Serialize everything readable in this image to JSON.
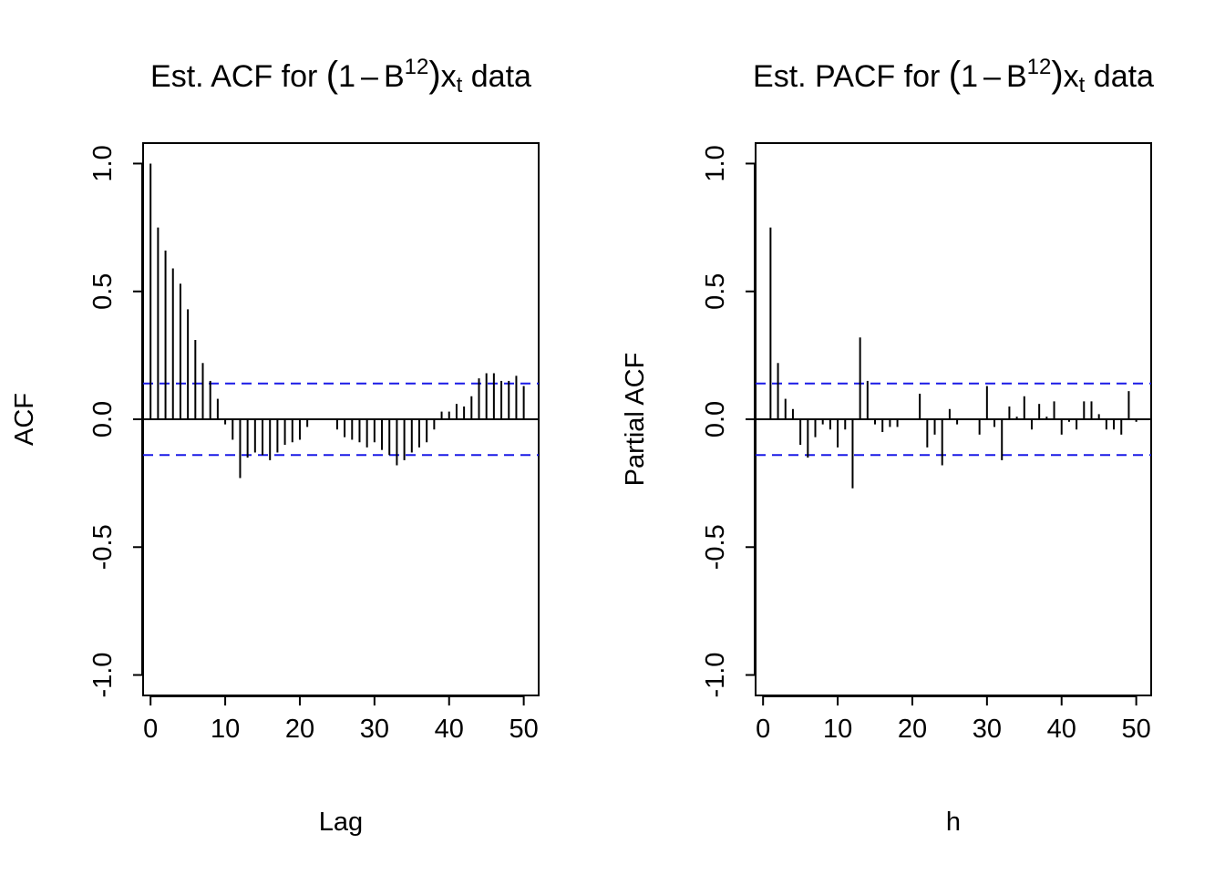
{
  "chart_data": [
    {
      "type": "bar",
      "title_parts": {
        "prefix": "Est. ACF for ",
        "open": "(",
        "one": "1",
        "minus": "–",
        "B": "B",
        "exp": "12",
        "close": ")",
        "x": "x",
        "sub": "t",
        "suffix": " data"
      },
      "xlabel": "Lag",
      "ylabel": "ACF",
      "xlim": [
        -1,
        52
      ],
      "ylim": [
        -1.08,
        1.08
      ],
      "xticks": [
        "0",
        "10",
        "20",
        "30",
        "40",
        "50"
      ],
      "yticks": [
        "-1.0",
        "-0.5",
        "0.0",
        "0.5",
        "1.0"
      ],
      "conf_limit": 0.14,
      "x": [
        0,
        1,
        2,
        3,
        4,
        5,
        6,
        7,
        8,
        9,
        10,
        11,
        12,
        13,
        14,
        15,
        16,
        17,
        18,
        19,
        20,
        21,
        22,
        23,
        24,
        25,
        26,
        27,
        28,
        29,
        30,
        31,
        32,
        33,
        34,
        35,
        36,
        37,
        38,
        39,
        40,
        41,
        42,
        43,
        44,
        45,
        46,
        47,
        48,
        49,
        50
      ],
      "values": [
        1.0,
        0.75,
        0.66,
        0.59,
        0.53,
        0.43,
        0.31,
        0.22,
        0.15,
        0.08,
        -0.02,
        -0.08,
        -0.23,
        -0.15,
        -0.13,
        -0.14,
        -0.16,
        -0.13,
        -0.1,
        -0.09,
        -0.08,
        -0.03,
        0.0,
        0.0,
        0.0,
        -0.04,
        -0.07,
        -0.08,
        -0.09,
        -0.11,
        -0.09,
        -0.12,
        -0.14,
        -0.18,
        -0.16,
        -0.13,
        -0.11,
        -0.09,
        -0.04,
        0.03,
        0.03,
        0.06,
        0.05,
        0.09,
        0.16,
        0.18,
        0.18,
        0.15,
        0.15,
        0.17,
        0.13
      ]
    },
    {
      "type": "bar",
      "title_parts": {
        "prefix": "Est. PACF for ",
        "open": "(",
        "one": "1",
        "minus": "–",
        "B": "B",
        "exp": "12",
        "close": ")",
        "x": "x",
        "sub": "t",
        "suffix": " data"
      },
      "xlabel": "h",
      "ylabel": "Partial ACF",
      "xlim": [
        -1,
        52
      ],
      "ylim": [
        -1.08,
        1.08
      ],
      "xticks": [
        "0",
        "10",
        "20",
        "30",
        "40",
        "50"
      ],
      "yticks": [
        "-1.0",
        "-0.5",
        "0.0",
        "0.5",
        "1.0"
      ],
      "conf_limit": 0.14,
      "x": [
        1,
        2,
        3,
        4,
        5,
        6,
        7,
        8,
        9,
        10,
        11,
        12,
        13,
        14,
        15,
        16,
        17,
        18,
        19,
        20,
        21,
        22,
        23,
        24,
        25,
        26,
        27,
        28,
        29,
        30,
        31,
        32,
        33,
        34,
        35,
        36,
        37,
        38,
        39,
        40,
        41,
        42,
        43,
        44,
        45,
        46,
        47,
        48,
        49,
        50
      ],
      "values": [
        0.75,
        0.22,
        0.08,
        0.04,
        -0.1,
        -0.15,
        -0.07,
        -0.02,
        -0.04,
        -0.11,
        -0.04,
        -0.27,
        0.32,
        0.15,
        -0.02,
        -0.05,
        -0.03,
        -0.03,
        0.0,
        0.0,
        0.1,
        -0.11,
        -0.06,
        -0.18,
        0.04,
        -0.02,
        0.0,
        0.0,
        -0.06,
        0.13,
        -0.03,
        -0.16,
        0.05,
        0.01,
        0.09,
        -0.04,
        0.06,
        0.01,
        0.07,
        -0.06,
        -0.01,
        -0.04,
        0.07,
        0.07,
        0.02,
        -0.04,
        -0.04,
        -0.06,
        0.11,
        -0.01
      ]
    }
  ],
  "colors": {
    "bars": "#000000",
    "axes": "#000000",
    "conf_lines": "#1a1ae6",
    "background": "#ffffff"
  }
}
